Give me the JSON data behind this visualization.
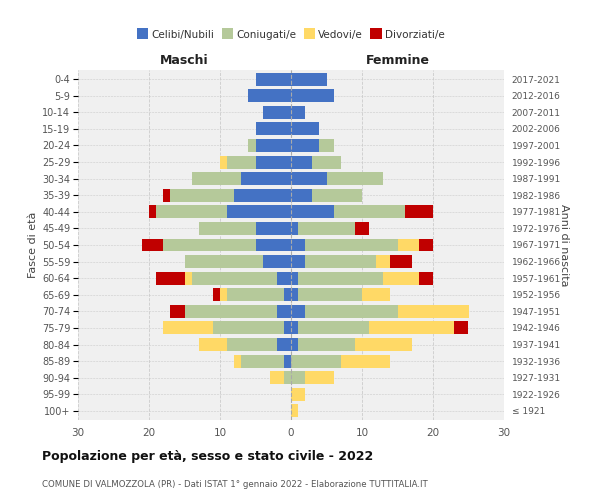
{
  "age_groups": [
    "100+",
    "95-99",
    "90-94",
    "85-89",
    "80-84",
    "75-79",
    "70-74",
    "65-69",
    "60-64",
    "55-59",
    "50-54",
    "45-49",
    "40-44",
    "35-39",
    "30-34",
    "25-29",
    "20-24",
    "15-19",
    "10-14",
    "5-9",
    "0-4"
  ],
  "birth_years": [
    "≤ 1921",
    "1922-1926",
    "1927-1931",
    "1932-1936",
    "1937-1941",
    "1942-1946",
    "1947-1951",
    "1952-1956",
    "1957-1961",
    "1962-1966",
    "1967-1971",
    "1972-1976",
    "1977-1981",
    "1982-1986",
    "1987-1991",
    "1992-1996",
    "1997-2001",
    "2002-2006",
    "2007-2011",
    "2012-2016",
    "2017-2021"
  ],
  "male": {
    "celibi": [
      0,
      0,
      0,
      1,
      2,
      1,
      2,
      1,
      2,
      4,
      5,
      5,
      9,
      8,
      7,
      5,
      5,
      5,
      4,
      6,
      5
    ],
    "coniugati": [
      0,
      0,
      1,
      6,
      7,
      10,
      13,
      8,
      12,
      11,
      13,
      8,
      10,
      9,
      7,
      4,
      1,
      0,
      0,
      0,
      0
    ],
    "vedovi": [
      0,
      0,
      2,
      1,
      4,
      7,
      0,
      1,
      1,
      0,
      0,
      0,
      0,
      0,
      0,
      1,
      0,
      0,
      0,
      0,
      0
    ],
    "divorziati": [
      0,
      0,
      0,
      0,
      0,
      0,
      2,
      1,
      4,
      0,
      3,
      0,
      1,
      1,
      0,
      0,
      0,
      0,
      0,
      0,
      0
    ]
  },
  "female": {
    "nubili": [
      0,
      0,
      0,
      0,
      1,
      1,
      2,
      1,
      1,
      2,
      2,
      1,
      6,
      3,
      5,
      3,
      4,
      4,
      2,
      6,
      5
    ],
    "coniugate": [
      0,
      0,
      2,
      7,
      8,
      10,
      13,
      9,
      12,
      10,
      13,
      8,
      10,
      7,
      8,
      4,
      2,
      0,
      0,
      0,
      0
    ],
    "vedove": [
      1,
      2,
      4,
      7,
      8,
      12,
      10,
      4,
      5,
      2,
      3,
      0,
      0,
      0,
      0,
      0,
      0,
      0,
      0,
      0,
      0
    ],
    "divorziate": [
      0,
      0,
      0,
      0,
      0,
      2,
      0,
      0,
      2,
      3,
      2,
      2,
      4,
      0,
      0,
      0,
      0,
      0,
      0,
      0,
      0
    ]
  },
  "colors": {
    "celibi": "#4472c4",
    "coniugati": "#b5c99a",
    "vedovi": "#ffd966",
    "divorziati": "#c00000"
  },
  "xlim": 30,
  "title": "Popolazione per età, sesso e stato civile - 2022",
  "subtitle": "COMUNE DI VALMOZZOLA (PR) - Dati ISTAT 1° gennaio 2022 - Elaborazione TUTTITALIA.IT",
  "ylabel_left": "Fasce di età",
  "ylabel_right": "Anni di nascita",
  "xlabel_male": "Maschi",
  "xlabel_female": "Femmine",
  "legend_labels": [
    "Celibi/Nubili",
    "Coniugati/e",
    "Vedovi/e",
    "Divorziati/e"
  ],
  "bg_color": "#ffffff",
  "grid_color": "#cccccc",
  "figsize": [
    6.0,
    5.0
  ],
  "dpi": 100
}
